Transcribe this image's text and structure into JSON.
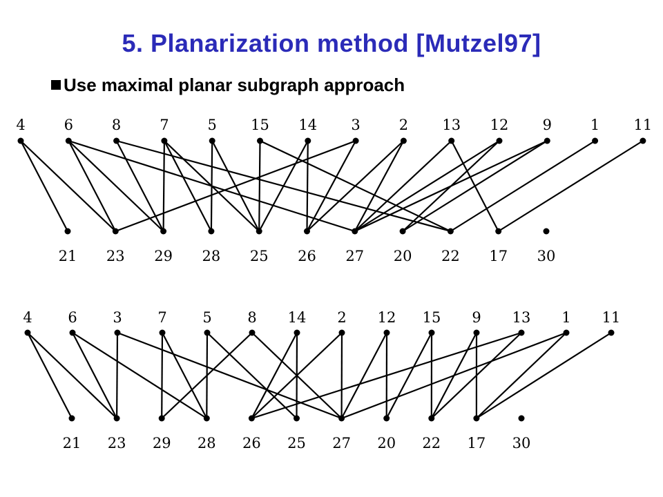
{
  "title": "5. Planarization method [Mutzel97]",
  "bullet": {
    "text": "Use maximal planar subgraph approach"
  },
  "diagrams": [
    {
      "name": "graph-a",
      "top_labels": [
        "4",
        "6",
        "8",
        "7",
        "5",
        "15",
        "14",
        "3",
        "2",
        "13",
        "12",
        "9",
        "1",
        "11"
      ],
      "bottom_labels": [
        "21",
        "23",
        "29",
        "28",
        "25",
        "26",
        "27",
        "20",
        "22",
        "17",
        "30"
      ],
      "edges": [
        [
          "4",
          "21"
        ],
        [
          "4",
          "23"
        ],
        [
          "6",
          "23"
        ],
        [
          "6",
          "29"
        ],
        [
          "6",
          "27"
        ],
        [
          "8",
          "29"
        ],
        [
          "8",
          "22"
        ],
        [
          "7",
          "29"
        ],
        [
          "7",
          "28"
        ],
        [
          "7",
          "25"
        ],
        [
          "5",
          "28"
        ],
        [
          "5",
          "25"
        ],
        [
          "15",
          "25"
        ],
        [
          "15",
          "22"
        ],
        [
          "14",
          "25"
        ],
        [
          "14",
          "26"
        ],
        [
          "3",
          "23"
        ],
        [
          "3",
          "26"
        ],
        [
          "2",
          "26"
        ],
        [
          "2",
          "27"
        ],
        [
          "13",
          "27"
        ],
        [
          "13",
          "17"
        ],
        [
          "12",
          "27"
        ],
        [
          "12",
          "20"
        ],
        [
          "9",
          "20"
        ],
        [
          "9",
          "27"
        ],
        [
          "1",
          "22"
        ],
        [
          "11",
          "17"
        ]
      ]
    },
    {
      "name": "graph-b",
      "top_labels": [
        "4",
        "6",
        "3",
        "7",
        "5",
        "8",
        "14",
        "2",
        "12",
        "15",
        "9",
        "13",
        "1",
        "11"
      ],
      "bottom_labels": [
        "21",
        "23",
        "29",
        "28",
        "26",
        "25",
        "27",
        "20",
        "22",
        "17",
        "30"
      ],
      "edges": [
        [
          "4",
          "21"
        ],
        [
          "4",
          "23"
        ],
        [
          "6",
          "23"
        ],
        [
          "6",
          "28"
        ],
        [
          "3",
          "23"
        ],
        [
          "3",
          "27"
        ],
        [
          "7",
          "29"
        ],
        [
          "7",
          "28"
        ],
        [
          "5",
          "28"
        ],
        [
          "5",
          "25"
        ],
        [
          "8",
          "29"
        ],
        [
          "8",
          "27"
        ],
        [
          "14",
          "26"
        ],
        [
          "14",
          "25"
        ],
        [
          "2",
          "26"
        ],
        [
          "2",
          "27"
        ],
        [
          "12",
          "27"
        ],
        [
          "12",
          "20"
        ],
        [
          "15",
          "22"
        ],
        [
          "15",
          "20"
        ],
        [
          "9",
          "22"
        ],
        [
          "9",
          "17"
        ],
        [
          "13",
          "26"
        ],
        [
          "13",
          "22"
        ],
        [
          "1",
          "27"
        ],
        [
          "1",
          "17"
        ],
        [
          "11",
          "17"
        ]
      ]
    }
  ]
}
